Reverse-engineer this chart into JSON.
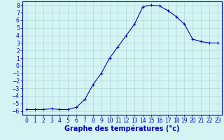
{
  "hours": [
    0,
    1,
    2,
    3,
    4,
    5,
    6,
    7,
    8,
    9,
    10,
    11,
    12,
    13,
    14,
    15,
    16,
    17,
    18,
    19,
    20,
    21,
    22,
    23
  ],
  "temps": [
    -5.8,
    -5.8,
    -5.8,
    -5.7,
    -5.8,
    -5.8,
    -5.5,
    -4.5,
    -2.5,
    -1.0,
    1.0,
    2.5,
    4.0,
    5.5,
    7.8,
    8.0,
    7.9,
    7.3,
    6.5,
    5.5,
    3.5,
    3.2,
    3.0,
    3.0
  ],
  "xlabel": "Graphe des températures (°c)",
  "ylim": [
    -6.5,
    8.5
  ],
  "xlim": [
    -0.5,
    23.5
  ],
  "yticks": [
    8,
    7,
    6,
    5,
    4,
    3,
    2,
    1,
    0,
    -1,
    -2,
    -3,
    -4,
    -5,
    -6
  ],
  "xticks": [
    0,
    1,
    2,
    3,
    4,
    5,
    6,
    7,
    8,
    9,
    10,
    11,
    12,
    13,
    14,
    15,
    16,
    17,
    18,
    19,
    20,
    21,
    22,
    23
  ],
  "line_color": "#0000cc",
  "marker": "+",
  "bg_color": "#d4f4f4",
  "grid_color": "#b0d8d8",
  "axis_color": "#0000cc",
  "xlabel_fontsize": 7,
  "tick_fontsize": 5.5,
  "xlabel_bold": true
}
